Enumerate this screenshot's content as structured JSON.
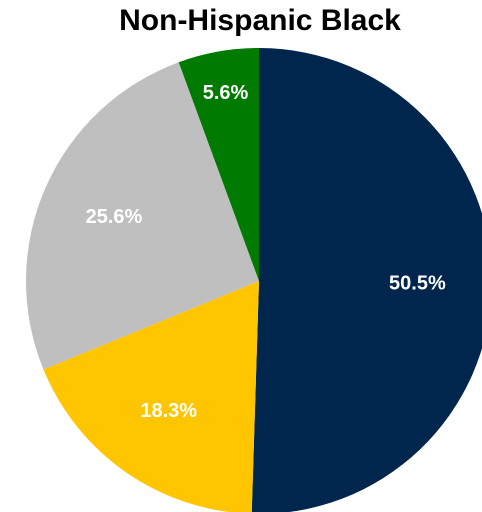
{
  "chart_data": {
    "type": "pie",
    "title": "Non-Hispanic Black",
    "slices": [
      {
        "label": "50.5%",
        "value": 50.5,
        "color": "#00264d"
      },
      {
        "label": "18.3%",
        "value": 18.3,
        "color": "#ffc600"
      },
      {
        "label": "25.6%",
        "value": 25.6,
        "color": "#bfbfbf"
      },
      {
        "label": "5.6%",
        "value": 5.6,
        "color": "#007a00"
      }
    ],
    "start_angle_deg": 0,
    "direction": "clockwise"
  }
}
